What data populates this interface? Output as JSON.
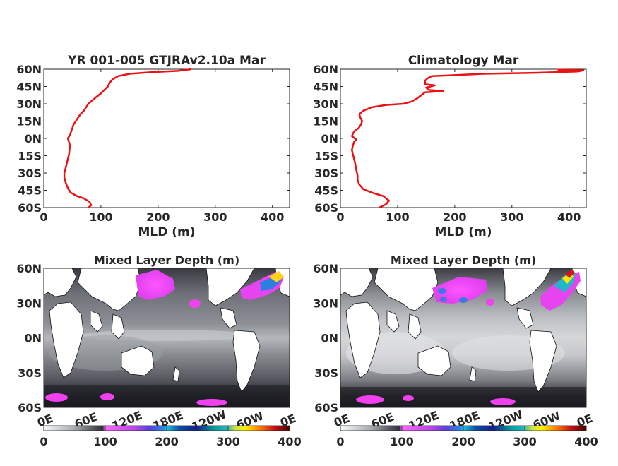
{
  "chart_data": [
    {
      "type": "line",
      "title": "YR 001-005 GTJRAv2.10a Mar",
      "xlabel": "MLD (m)",
      "ylabel": "",
      "xlim": [
        0,
        430
      ],
      "ylim": [
        -60,
        60
      ],
      "xticks": [
        "0",
        "100",
        "200",
        "300",
        "400"
      ],
      "yticks": [
        "60N",
        "45N",
        "30N",
        "15N",
        "0N",
        "15S",
        "30S",
        "45S",
        "60S"
      ],
      "grid": false,
      "color": "#ee1111",
      "points": [
        [
          78,
          -60
        ],
        [
          83,
          -58
        ],
        [
          80,
          -55
        ],
        [
          70,
          -52
        ],
        [
          58,
          -50
        ],
        [
          47,
          -47
        ],
        [
          42,
          -43
        ],
        [
          38,
          -38
        ],
        [
          36,
          -34
        ],
        [
          36,
          -30
        ],
        [
          38,
          -26
        ],
        [
          40,
          -22
        ],
        [
          42,
          -18
        ],
        [
          44,
          -14
        ],
        [
          45,
          -10
        ],
        [
          46,
          -6
        ],
        [
          44,
          -3
        ],
        [
          42,
          0
        ],
        [
          46,
          3
        ],
        [
          48,
          6
        ],
        [
          50,
          9
        ],
        [
          52,
          12
        ],
        [
          56,
          15
        ],
        [
          60,
          18
        ],
        [
          64,
          21
        ],
        [
          70,
          24
        ],
        [
          74,
          27
        ],
        [
          78,
          30
        ],
        [
          85,
          33
        ],
        [
          92,
          36
        ],
        [
          100,
          39
        ],
        [
          106,
          42
        ],
        [
          112,
          45
        ],
        [
          115,
          48
        ],
        [
          120,
          51
        ],
        [
          130,
          54
        ],
        [
          150,
          56
        ],
        [
          190,
          57.5
        ],
        [
          235,
          58.5
        ],
        [
          258,
          60
        ]
      ]
    },
    {
      "type": "line",
      "title": "Climatology Mar",
      "xlabel": "MLD (m)",
      "ylabel": "",
      "xlim": [
        0,
        430
      ],
      "ylim": [
        -60,
        60
      ],
      "xticks": [
        "0",
        "100",
        "200",
        "300",
        "400"
      ],
      "yticks": [
        "60N",
        "45N",
        "30N",
        "15N",
        "0N",
        "15S",
        "30S",
        "45S",
        "60S"
      ],
      "grid": false,
      "color": "#ee1111",
      "points": [
        [
          68,
          -60
        ],
        [
          80,
          -57
        ],
        [
          85,
          -54
        ],
        [
          75,
          -50
        ],
        [
          55,
          -47
        ],
        [
          40,
          -44
        ],
        [
          33,
          -40
        ],
        [
          30,
          -36
        ],
        [
          30,
          -32
        ],
        [
          28,
          -28
        ],
        [
          26,
          -22
        ],
        [
          24,
          -18
        ],
        [
          22,
          -14
        ],
        [
          20,
          -10
        ],
        [
          22,
          -6
        ],
        [
          24,
          -3
        ],
        [
          28,
          -1
        ],
        [
          20,
          2
        ],
        [
          24,
          6
        ],
        [
          32,
          9
        ],
        [
          36,
          12
        ],
        [
          38,
          15
        ],
        [
          35,
          18
        ],
        [
          33,
          21
        ],
        [
          40,
          24
        ],
        [
          55,
          27
        ],
        [
          80,
          29
        ],
        [
          110,
          30
        ],
        [
          125,
          32
        ],
        [
          135,
          35
        ],
        [
          148,
          40
        ],
        [
          180,
          41
        ],
        [
          155,
          42
        ],
        [
          150,
          44
        ],
        [
          165,
          46
        ],
        [
          148,
          47
        ],
        [
          148,
          50
        ],
        [
          152,
          52
        ],
        [
          160,
          54
        ],
        [
          250,
          56
        ],
        [
          350,
          57
        ],
        [
          415,
          58
        ],
        [
          425,
          59
        ],
        [
          380,
          59.5
        ]
      ]
    },
    {
      "type": "heatmap",
      "title": "Mixed Layer Depth (m)",
      "xticks": [
        "0E",
        "60E",
        "120E",
        "180E",
        "120W",
        "60W",
        "0E"
      ],
      "yticks": [
        "60N",
        "30N",
        "0N",
        "30S",
        "60S"
      ],
      "colorbar": {
        "range": [
          0,
          400
        ],
        "ticks": [
          "0",
          "100",
          "200",
          "300",
          "400"
        ]
      },
      "deep_regions": [
        {
          "area": "North Pacific (Kuroshio extension)",
          "level": "100-150"
        },
        {
          "area": "North Atlantic",
          "level": "100-300"
        },
        {
          "area": "Southern Ocean patches",
          "level": "100-120"
        }
      ]
    },
    {
      "type": "heatmap",
      "title": "Mixed Layer Depth (m)",
      "xticks": [
        "0E",
        "60E",
        "120E",
        "180E",
        "120W",
        "60W",
        "0E"
      ],
      "yticks": [
        "60N",
        "30N",
        "0N",
        "30S",
        "60S"
      ],
      "colorbar": {
        "range": [
          0,
          400
        ],
        "ticks": [
          "0",
          "100",
          "200",
          "300",
          "400"
        ]
      },
      "deep_regions": [
        {
          "area": "North Pacific (Kuroshio extension)",
          "level": "100-180"
        },
        {
          "area": "North Atlantic (Labrador / Irminger)",
          "level": "100-400"
        },
        {
          "area": "Southern Ocean patches",
          "level": "100-120"
        }
      ]
    }
  ]
}
